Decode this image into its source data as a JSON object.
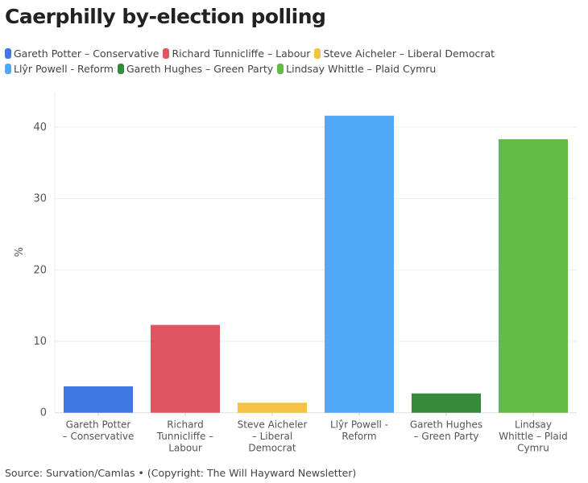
{
  "title": "Caerphilly by-election polling",
  "source": "Source: Survation/Camlas • (Copyright: The Will Hayward Newsletter)",
  "chart_data": {
    "type": "bar",
    "title": "Caerphilly by-election polling",
    "ylabel": "%",
    "xlabel": "",
    "ylim": [
      0,
      45
    ],
    "yticks": [
      0,
      10,
      20,
      30,
      40
    ],
    "grid": true,
    "legend_position": "top",
    "categories": [
      [
        "Gareth Potter",
        "– Conservative"
      ],
      [
        "Richard",
        "Tunnicliffe –",
        "Labour"
      ],
      [
        "Steve Aicheler",
        "– Liberal",
        "Democrat"
      ],
      [
        "Llŷr Powell -",
        "Reform"
      ],
      [
        "Gareth Hughes",
        "– Green Party"
      ],
      [
        "Lindsay",
        "Whittle – Plaid",
        "Cymru"
      ]
    ],
    "legend": [
      "Gareth Potter – Conservative",
      "Richard Tunnicliffe – Labour",
      "Steve Aicheler – Liberal Democrat",
      "Llŷr Powell - Reform",
      "Gareth Hughes – Green Party",
      "Lindsay Whittle – Plaid Cymru"
    ],
    "values": [
      3.7,
      12.3,
      1.4,
      41.6,
      2.7,
      38.3
    ],
    "colors": [
      "#3f78e0",
      "#e15561",
      "#f5c242",
      "#50a8f8",
      "#378a3a",
      "#62bc45"
    ]
  }
}
